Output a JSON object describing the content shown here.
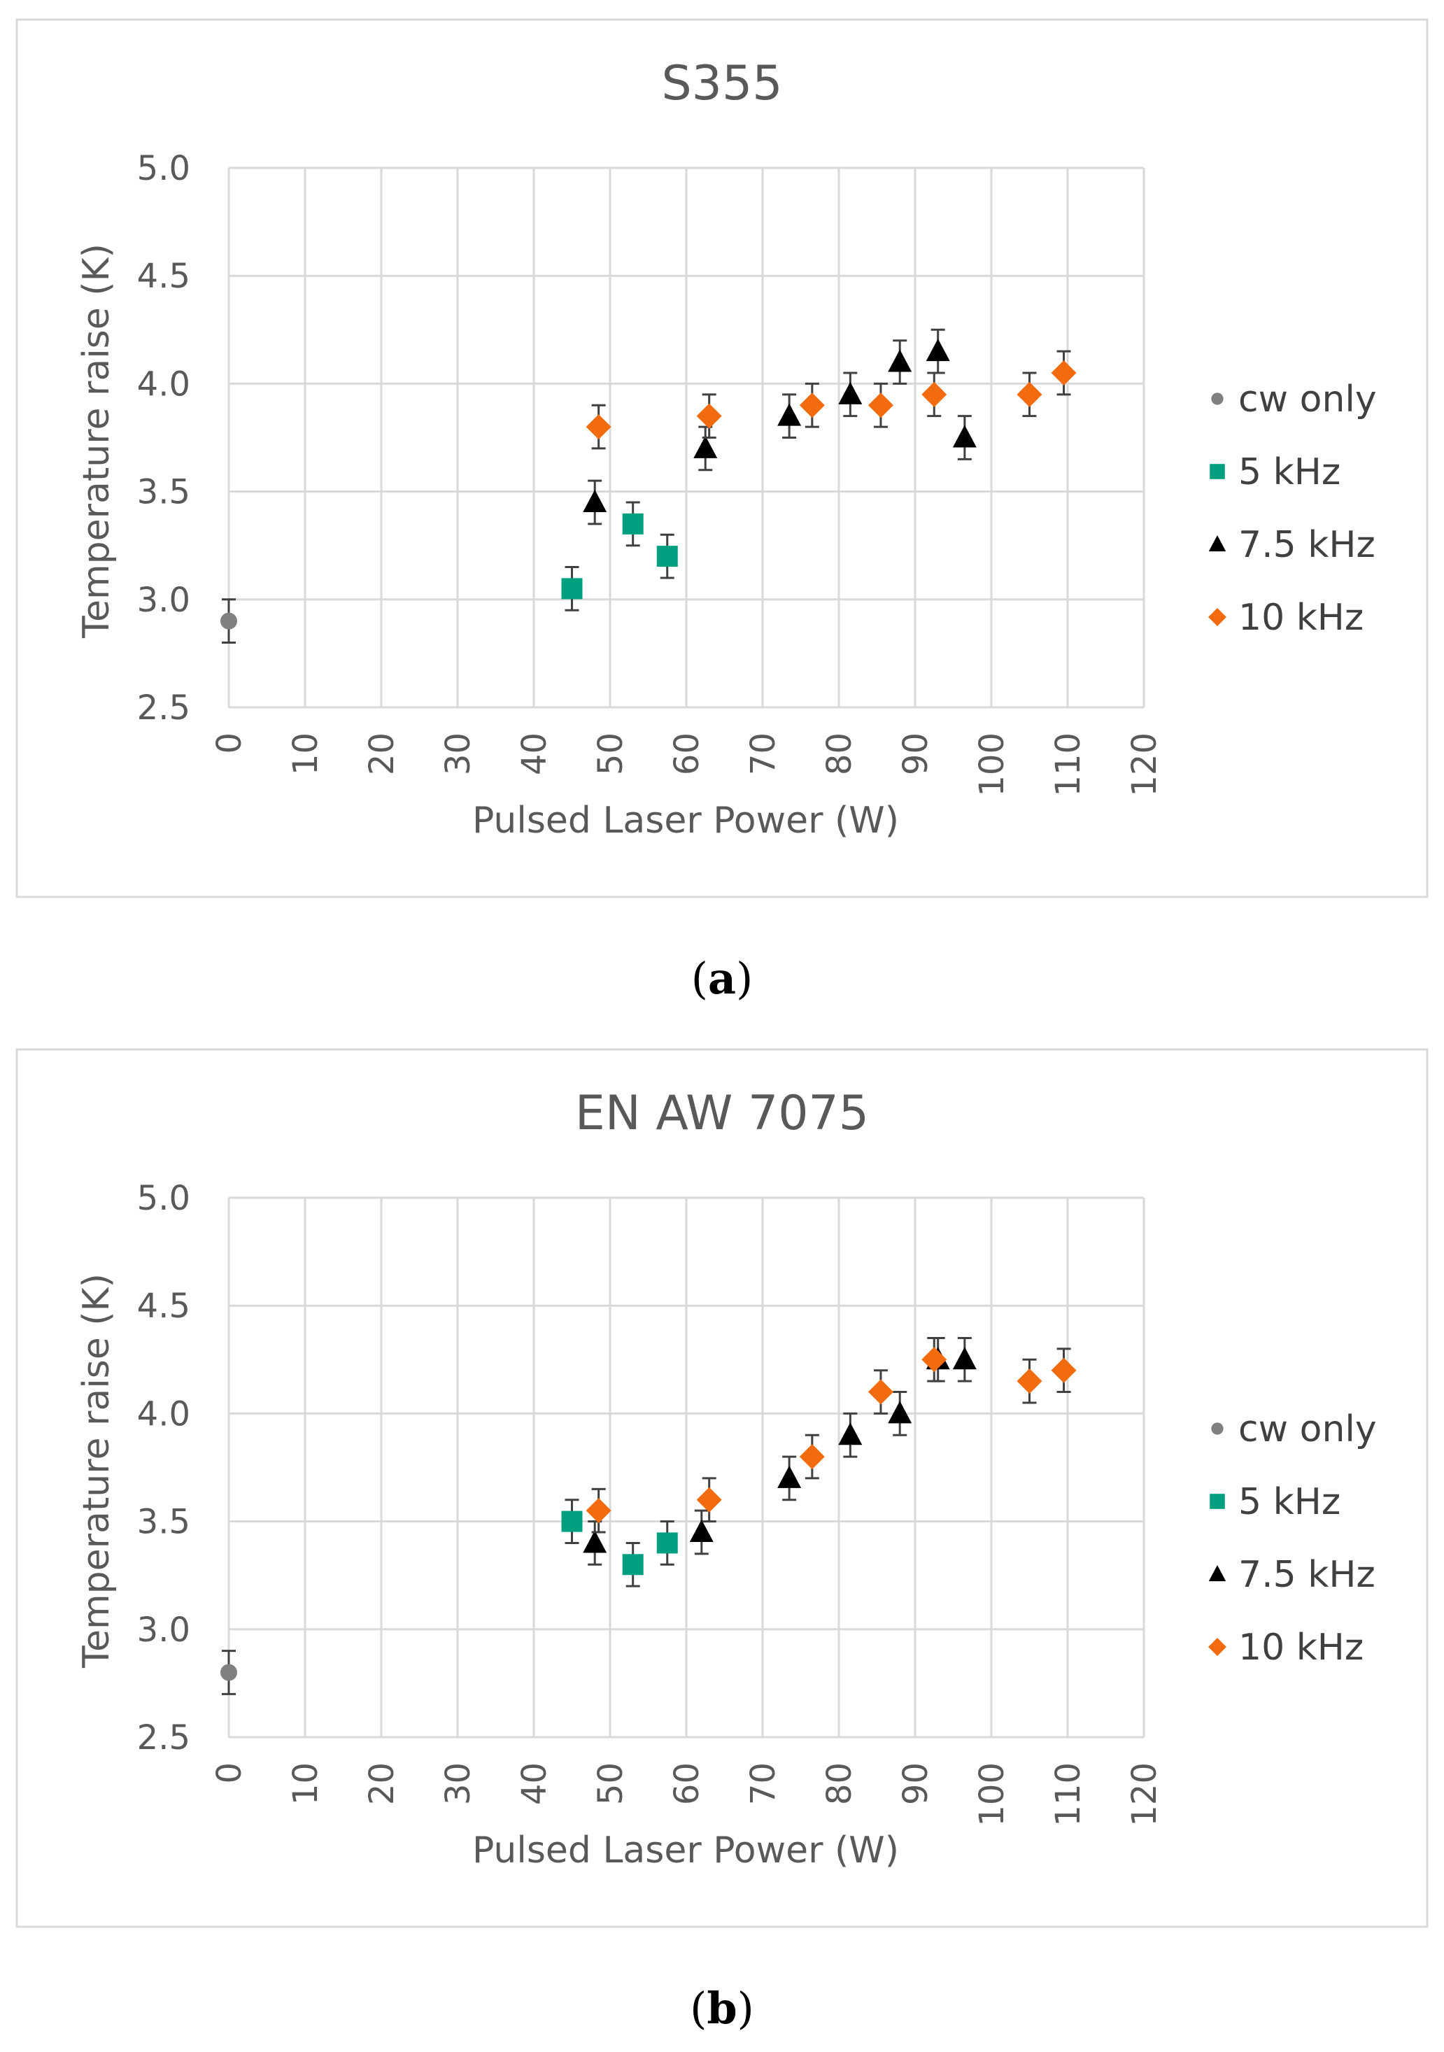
{
  "chart_data": [
    {
      "type": "scatter",
      "title": "S355",
      "caption": "a",
      "xlabel": "Pulsed Laser Power (W)",
      "ylabel": "Temperature raise (K)",
      "xlim": [
        0,
        120
      ],
      "ylim": [
        2.5,
        5.0
      ],
      "x_ticks": [
        "0",
        "10",
        "20",
        "30",
        "40",
        "50",
        "60",
        "70",
        "80",
        "90",
        "100",
        "110",
        "120"
      ],
      "y_ticks": [
        "2.5",
        "3.0",
        "3.5",
        "4.0",
        "4.5",
        "5.0"
      ],
      "grid": true,
      "legend_position": "right",
      "series": [
        {
          "name": "cw only",
          "marker": "circle",
          "color": "#808080",
          "points": [
            {
              "x": 0,
              "y": 2.9,
              "err": 0.1
            }
          ]
        },
        {
          "name": "5 kHz",
          "marker": "square",
          "color": "#009F80",
          "points": [
            {
              "x": 45,
              "y": 3.05,
              "err": 0.1
            },
            {
              "x": 53,
              "y": 3.35,
              "err": 0.1
            },
            {
              "x": 57.5,
              "y": 3.2,
              "err": 0.1
            }
          ]
        },
        {
          "name": "7.5 kHz",
          "marker": "triangle",
          "color": "#000000",
          "points": [
            {
              "x": 48,
              "y": 3.45,
              "err": 0.1
            },
            {
              "x": 62.5,
              "y": 3.7,
              "err": 0.1
            },
            {
              "x": 73.5,
              "y": 3.85,
              "err": 0.1
            },
            {
              "x": 81.5,
              "y": 3.95,
              "err": 0.1
            },
            {
              "x": 88,
              "y": 4.1,
              "err": 0.1
            },
            {
              "x": 93,
              "y": 4.15,
              "err": 0.1
            },
            {
              "x": 96.5,
              "y": 3.75,
              "err": 0.1
            }
          ]
        },
        {
          "name": "10 kHz",
          "marker": "diamond",
          "color": "#F26B0F",
          "points": [
            {
              "x": 48.5,
              "y": 3.8,
              "err": 0.1
            },
            {
              "x": 63,
              "y": 3.85,
              "err": 0.1
            },
            {
              "x": 76.5,
              "y": 3.9,
              "err": 0.1
            },
            {
              "x": 85.5,
              "y": 3.9,
              "err": 0.1
            },
            {
              "x": 92.5,
              "y": 3.95,
              "err": 0.1
            },
            {
              "x": 105,
              "y": 3.95,
              "err": 0.1
            },
            {
              "x": 109.5,
              "y": 4.05,
              "err": 0.1
            }
          ]
        }
      ]
    },
    {
      "type": "scatter",
      "title": "EN AW 7075",
      "caption": "b",
      "xlabel": "Pulsed Laser Power (W)",
      "ylabel": "Temperature raise (K)",
      "xlim": [
        0,
        120
      ],
      "ylim": [
        2.5,
        5.0
      ],
      "x_ticks": [
        "0",
        "10",
        "20",
        "30",
        "40",
        "50",
        "60",
        "70",
        "80",
        "90",
        "100",
        "110",
        "120"
      ],
      "y_ticks": [
        "2.5",
        "3.0",
        "3.5",
        "4.0",
        "4.5",
        "5.0"
      ],
      "grid": true,
      "legend_position": "right",
      "series": [
        {
          "name": "cw only",
          "marker": "circle",
          "color": "#808080",
          "points": [
            {
              "x": 0,
              "y": 2.8,
              "err": 0.1
            }
          ]
        },
        {
          "name": "5 kHz",
          "marker": "square",
          "color": "#009F80",
          "points": [
            {
              "x": 45,
              "y": 3.5,
              "err": 0.1
            },
            {
              "x": 53,
              "y": 3.3,
              "err": 0.1
            },
            {
              "x": 57.5,
              "y": 3.4,
              "err": 0.1
            }
          ]
        },
        {
          "name": "7.5 kHz",
          "marker": "triangle",
          "color": "#000000",
          "points": [
            {
              "x": 48,
              "y": 3.4,
              "err": 0.1
            },
            {
              "x": 62,
              "y": 3.45,
              "err": 0.1
            },
            {
              "x": 73.5,
              "y": 3.7,
              "err": 0.1
            },
            {
              "x": 81.5,
              "y": 3.9,
              "err": 0.1
            },
            {
              "x": 88,
              "y": 4.0,
              "err": 0.1
            },
            {
              "x": 93,
              "y": 4.25,
              "err": 0.1
            },
            {
              "x": 96.5,
              "y": 4.25,
              "err": 0.1
            }
          ]
        },
        {
          "name": "10 kHz",
          "marker": "diamond",
          "color": "#F26B0F",
          "points": [
            {
              "x": 48.5,
              "y": 3.55,
              "err": 0.1
            },
            {
              "x": 63,
              "y": 3.6,
              "err": 0.1
            },
            {
              "x": 76.5,
              "y": 3.8,
              "err": 0.1
            },
            {
              "x": 85.5,
              "y": 4.1,
              "err": 0.1
            },
            {
              "x": 92.5,
              "y": 4.25,
              "err": 0.1
            },
            {
              "x": 105,
              "y": 4.15,
              "err": 0.1
            },
            {
              "x": 109.5,
              "y": 4.2,
              "err": 0.1
            }
          ]
        }
      ]
    }
  ]
}
